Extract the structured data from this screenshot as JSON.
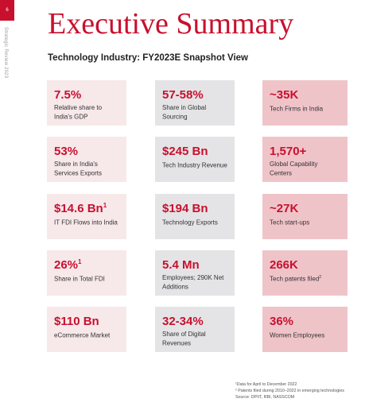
{
  "sidebar": {
    "page_number": "6",
    "vertical_text": "Strategic Review 2023"
  },
  "header": {
    "title": "Executive Summary",
    "subtitle": "Technology Industry: FY2023E Snapshot View"
  },
  "cards": [
    {
      "value": "7.5%",
      "sup": "",
      "label": "Relative share to India's GDP",
      "label_sup": ""
    },
    {
      "value": "57-58%",
      "sup": "",
      "label": "Share in Global Sourcing",
      "label_sup": ""
    },
    {
      "value": "~35K",
      "sup": "",
      "label": "Tech Firms in India",
      "label_sup": ""
    },
    {
      "value": "53%",
      "sup": "",
      "label": "Share in India's Services Exports",
      "label_sup": ""
    },
    {
      "value": "$245 Bn",
      "sup": "",
      "label": "Tech Industry Revenue",
      "label_sup": ""
    },
    {
      "value": "1,570+",
      "sup": "",
      "label": "Global Capability Centers",
      "label_sup": ""
    },
    {
      "value": "$14.6 Bn",
      "sup": "1",
      "label": "IT FDI Flows into India",
      "label_sup": ""
    },
    {
      "value": "$194 Bn",
      "sup": "",
      "label": "Technology Exports",
      "label_sup": ""
    },
    {
      "value": "~27K",
      "sup": "",
      "label": "Tech start-ups",
      "label_sup": ""
    },
    {
      "value": "26%",
      "sup": "1",
      "label": "Share in Total FDI",
      "label_sup": ""
    },
    {
      "value": "5.4 Mn",
      "sup": "",
      "label": "Employees; 290K Net Additions",
      "label_sup": ""
    },
    {
      "value": "266K",
      "sup": "",
      "label": "Tech patents filed",
      "label_sup": "2"
    },
    {
      "value": "$110 Bn",
      "sup": "",
      "label": "eCommerce Market",
      "label_sup": ""
    },
    {
      "value": "32-34%",
      "sup": "",
      "label": "Share of Digital Revenues",
      "label_sup": ""
    },
    {
      "value": "36%",
      "sup": "",
      "label": "Women Employees",
      "label_sup": ""
    }
  ],
  "footnotes": [
    "¹Data for April to December 2022",
    "² Patents filed during 2010–2022 in emerging technologies",
    "Source: DPIIT, RBI, NASSCOM"
  ],
  "colors": {
    "accent": "#c8102e",
    "card_light": "#f7e8ea",
    "card_gray": "#e4e4e6",
    "card_pink": "#efc4c9"
  }
}
